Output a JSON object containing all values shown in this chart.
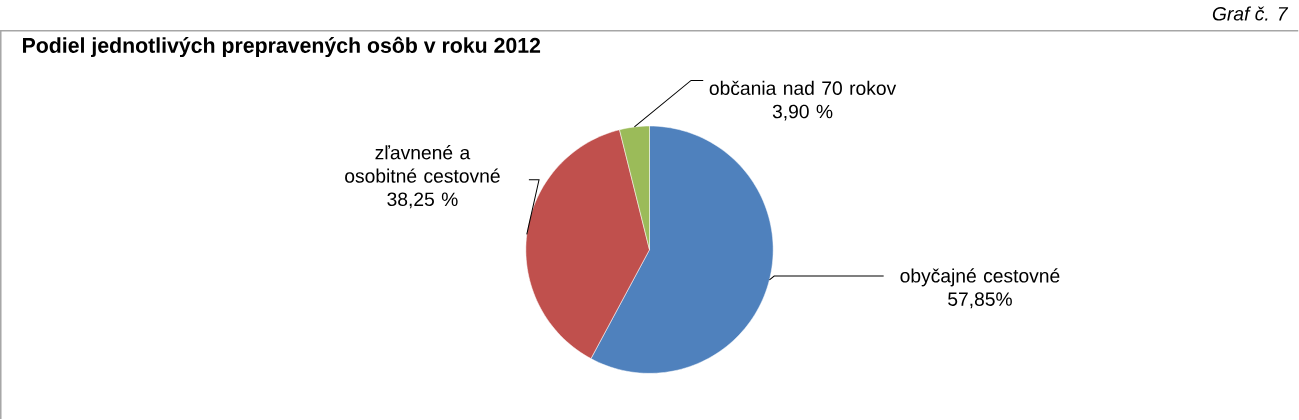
{
  "chart_data": {
    "type": "pie",
    "title": "Podiel jednotlivých prepravených osôb v roku 2012",
    "categories": [
      "obyčajné cestovné",
      "zľavnené a osobitné cestovné",
      "občania nad 70 rokov"
    ],
    "values": [
      57.85,
      38.25,
      3.9
    ],
    "value_labels": [
      "57,85%",
      "38,25 %",
      "3,90 %"
    ],
    "colors": [
      "#4f81bd",
      "#c0504d",
      "#9bbb59"
    ],
    "annotations": [
      "Graf č. 7"
    ]
  }
}
